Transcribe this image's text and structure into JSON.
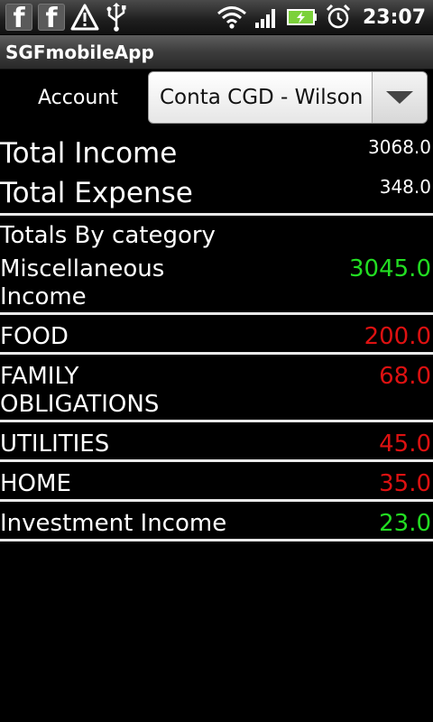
{
  "status_bar": {
    "time": "23:07",
    "left_icons": [
      "facebook-icon",
      "facebook-icon",
      "warning-icon",
      "usb-icon"
    ],
    "right_icons": [
      "wifi-icon",
      "signal-icon",
      "battery-charging-icon",
      "alarm-icon"
    ]
  },
  "app": {
    "title": "SGFmobileApp"
  },
  "account": {
    "label": "Account",
    "selected": "Conta CGD - Wilson"
  },
  "totals": {
    "income_label": "Total Income",
    "income_value": "3068.0",
    "expense_label": "Total Expense",
    "expense_value": "348.0"
  },
  "categories": {
    "header": "Totals By category",
    "items": [
      {
        "line1": "Miscellaneous",
        "line2": "Income",
        "value": "3045.0",
        "type": "income"
      },
      {
        "line1": "FOOD",
        "line2": "",
        "value": "200.0",
        "type": "expense"
      },
      {
        "line1": "FAMILY",
        "line2": "OBLIGATIONS",
        "value": "68.0",
        "type": "expense"
      },
      {
        "line1": "UTILITIES",
        "line2": "",
        "value": "45.0",
        "type": "expense"
      },
      {
        "line1": "HOME",
        "line2": "",
        "value": "35.0",
        "type": "expense"
      },
      {
        "line1": "Investment Income",
        "line2": "",
        "value": "23.0",
        "type": "income"
      }
    ]
  },
  "colors": {
    "income": "#22dd22",
    "expense": "#dd1111",
    "background": "#000000"
  }
}
